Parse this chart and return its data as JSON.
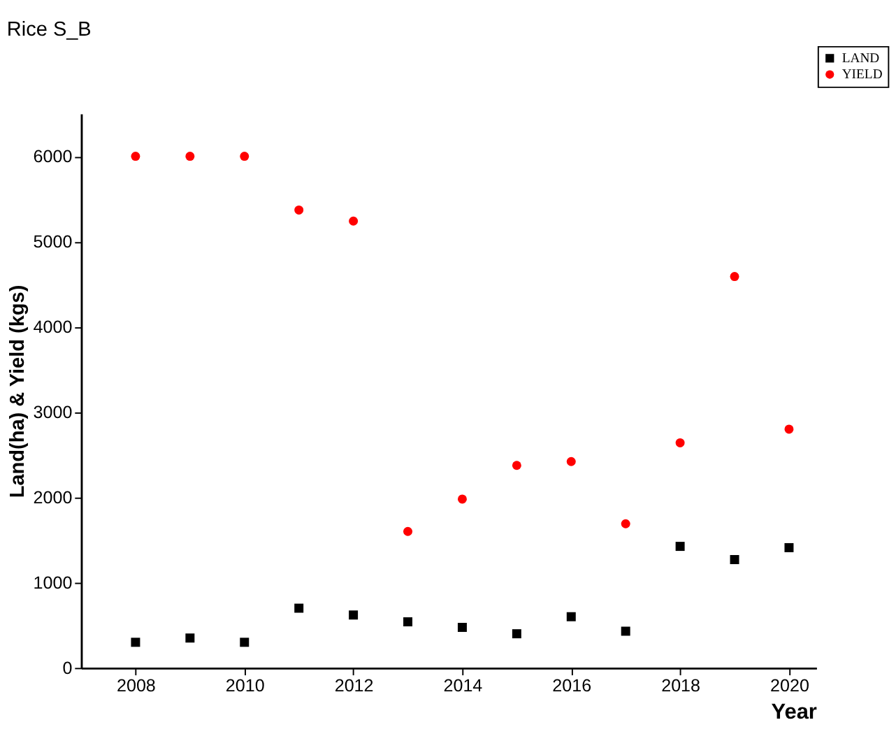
{
  "chart_data": {
    "type": "scatter",
    "title": "Rice S_B",
    "xlabel": "Year",
    "ylabel": "Land(ha) & Yield (kgs)",
    "x": [
      2008,
      2009,
      2010,
      2011,
      2012,
      2013,
      2014,
      2015,
      2016,
      2017,
      2018,
      2019,
      2020
    ],
    "series": [
      {
        "name": "LAND",
        "color": "#000000",
        "marker": "square",
        "values": [
          300,
          350,
          300,
          700,
          620,
          540,
          475,
          400,
          600,
          430,
          1425,
          1270,
          1410
        ]
      },
      {
        "name": "YIELD",
        "color": "#ff0000",
        "marker": "circle",
        "values": [
          6000,
          6000,
          6000,
          5370,
          5240,
          1600,
          1980,
          2375,
          2420,
          1690,
          2640,
          4590,
          2800
        ]
      }
    ],
    "xlim": [
      2007,
      2020.5
    ],
    "xticks": [
      2008,
      2010,
      2012,
      2014,
      2016,
      2018,
      2020
    ],
    "ylim": [
      0,
      6500
    ],
    "yticks": [
      0,
      1000,
      2000,
      3000,
      4000,
      5000,
      6000
    ],
    "grid": false,
    "legend": "top right"
  }
}
